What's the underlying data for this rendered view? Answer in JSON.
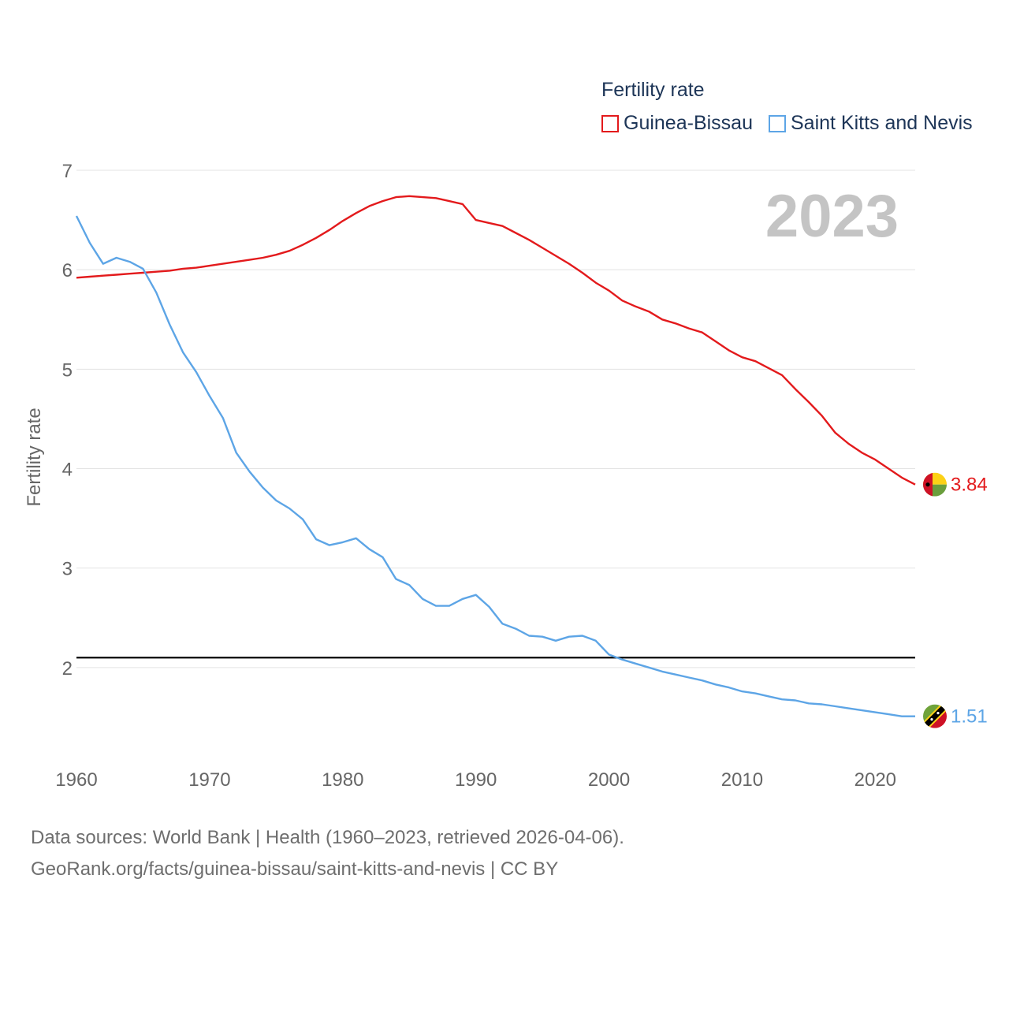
{
  "legend": {
    "title": "Fertility rate",
    "series": [
      {
        "name": "Guinea-Bissau",
        "color": "#e31a1c"
      },
      {
        "name": "Saint Kitts and Nevis",
        "color": "#5da5e6"
      }
    ]
  },
  "current_year": "2023",
  "footer": {
    "line1": "Data sources: World Bank | Health (1960–2023, retrieved 2026-04-06).",
    "line2": "GeoRank.org/facts/guinea-bissau/saint-kitts-and-nevis | CC BY"
  },
  "chart_data": {
    "type": "line",
    "title": "",
    "xlabel": "",
    "ylabel": "Fertility rate",
    "xlim": [
      1960,
      2023
    ],
    "ylim": [
      1.0,
      7.0
    ],
    "x_ticks": [
      1960,
      1970,
      1980,
      1990,
      2000,
      2010,
      2020
    ],
    "y_ticks": [
      2,
      3,
      4,
      5,
      6,
      7
    ],
    "grid": true,
    "reference_line": {
      "y": 2.1,
      "color": "#000000"
    },
    "x": [
      1960,
      1961,
      1962,
      1963,
      1964,
      1965,
      1966,
      1967,
      1968,
      1969,
      1970,
      1971,
      1972,
      1973,
      1974,
      1975,
      1976,
      1977,
      1978,
      1979,
      1980,
      1981,
      1982,
      1983,
      1984,
      1985,
      1986,
      1987,
      1988,
      1989,
      1990,
      1991,
      1992,
      1993,
      1994,
      1995,
      1996,
      1997,
      1998,
      1999,
      2000,
      2001,
      2002,
      2003,
      2004,
      2005,
      2006,
      2007,
      2008,
      2009,
      2010,
      2011,
      2012,
      2013,
      2014,
      2015,
      2016,
      2017,
      2018,
      2019,
      2020,
      2021,
      2022,
      2023
    ],
    "series": [
      {
        "name": "Guinea-Bissau",
        "color": "#e31a1c",
        "end_label": "3.84",
        "values": [
          5.92,
          5.93,
          5.94,
          5.95,
          5.96,
          5.97,
          5.98,
          5.99,
          6.01,
          6.02,
          6.04,
          6.06,
          6.08,
          6.1,
          6.12,
          6.15,
          6.19,
          6.25,
          6.32,
          6.4,
          6.49,
          6.57,
          6.64,
          6.69,
          6.73,
          6.74,
          6.73,
          6.72,
          6.69,
          6.66,
          6.5,
          6.47,
          6.44,
          6.37,
          6.3,
          6.22,
          6.14,
          6.06,
          5.97,
          5.87,
          5.79,
          5.69,
          5.63,
          5.58,
          5.5,
          5.46,
          5.41,
          5.37,
          5.28,
          5.19,
          5.12,
          5.08,
          5.01,
          4.94,
          4.8,
          4.67,
          4.53,
          4.36,
          4.25,
          4.16,
          4.09,
          4.0,
          3.91,
          3.84
        ]
      },
      {
        "name": "Saint Kitts and Nevis",
        "color": "#5da5e6",
        "end_label": "1.51",
        "values": [
          6.54,
          6.27,
          6.06,
          6.12,
          6.08,
          6.01,
          5.77,
          5.45,
          5.17,
          4.97,
          4.73,
          4.51,
          4.16,
          3.97,
          3.81,
          3.68,
          3.6,
          3.49,
          3.29,
          3.23,
          3.26,
          3.3,
          3.19,
          3.11,
          2.89,
          2.83,
          2.69,
          2.62,
          2.62,
          2.69,
          2.73,
          2.61,
          2.44,
          2.39,
          2.32,
          2.31,
          2.27,
          2.31,
          2.32,
          2.27,
          2.13,
          2.08,
          2.04,
          2.0,
          1.96,
          1.93,
          1.9,
          1.87,
          1.83,
          1.8,
          1.76,
          1.74,
          1.71,
          1.68,
          1.67,
          1.64,
          1.63,
          1.61,
          1.59,
          1.57,
          1.55,
          1.53,
          1.51,
          1.51
        ]
      }
    ]
  }
}
